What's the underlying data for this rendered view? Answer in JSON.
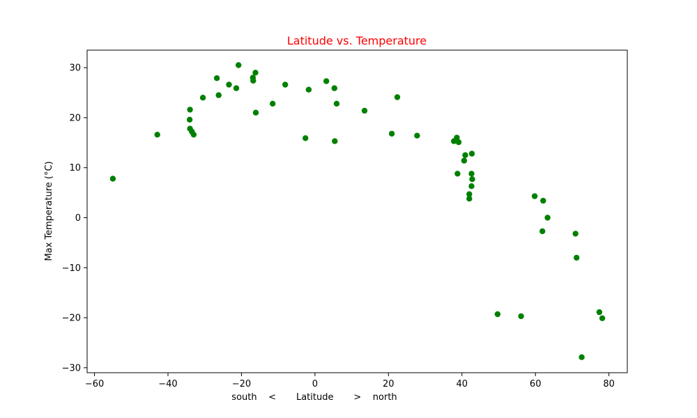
{
  "chart_data": {
    "type": "scatter",
    "title": "Latitude vs. Temperature",
    "title_color": "#ff0000",
    "xlabel": "south    <       Latitude       >    north",
    "ylabel": "Max Temperature (°C)",
    "xlim": [
      -62,
      85
    ],
    "ylim": [
      -31,
      33.5
    ],
    "xticks": [
      -60,
      -40,
      -20,
      0,
      20,
      40,
      60,
      80
    ],
    "yticks": [
      -30,
      -20,
      -10,
      0,
      10,
      20,
      30
    ],
    "grid": false,
    "marker_color": "#008000",
    "points": [
      {
        "x": -55.0,
        "y": 7.8
      },
      {
        "x": -42.9,
        "y": 16.6
      },
      {
        "x": -34.0,
        "y": 21.6
      },
      {
        "x": -34.1,
        "y": 19.6
      },
      {
        "x": -34.0,
        "y": 17.8
      },
      {
        "x": -33.5,
        "y": 17.2
      },
      {
        "x": -33.0,
        "y": 16.6
      },
      {
        "x": -30.5,
        "y": 24.0
      },
      {
        "x": -26.7,
        "y": 27.9
      },
      {
        "x": -26.2,
        "y": 24.5
      },
      {
        "x": -23.4,
        "y": 26.6
      },
      {
        "x": -21.4,
        "y": 25.9
      },
      {
        "x": -20.8,
        "y": 30.5
      },
      {
        "x": -16.9,
        "y": 28.0
      },
      {
        "x": -16.8,
        "y": 27.4
      },
      {
        "x": -16.2,
        "y": 29.0
      },
      {
        "x": -16.1,
        "y": 21.0
      },
      {
        "x": -11.5,
        "y": 22.8
      },
      {
        "x": -8.1,
        "y": 26.6
      },
      {
        "x": -2.6,
        "y": 15.9
      },
      {
        "x": -1.7,
        "y": 25.6
      },
      {
        "x": 3.1,
        "y": 27.3
      },
      {
        "x": 5.3,
        "y": 25.9
      },
      {
        "x": 5.4,
        "y": 15.3
      },
      {
        "x": 5.9,
        "y": 22.8
      },
      {
        "x": 13.5,
        "y": 21.4
      },
      {
        "x": 20.9,
        "y": 16.8
      },
      {
        "x": 22.4,
        "y": 24.1
      },
      {
        "x": 27.8,
        "y": 16.4
      },
      {
        "x": 37.8,
        "y": 15.3
      },
      {
        "x": 38.6,
        "y": 16.0
      },
      {
        "x": 38.8,
        "y": 8.8
      },
      {
        "x": 39.1,
        "y": 15.1
      },
      {
        "x": 40.6,
        "y": 11.4
      },
      {
        "x": 40.9,
        "y": 12.5
      },
      {
        "x": 42.0,
        "y": 4.7
      },
      {
        "x": 42.0,
        "y": 3.8
      },
      {
        "x": 42.6,
        "y": 8.8
      },
      {
        "x": 42.6,
        "y": 6.3
      },
      {
        "x": 42.7,
        "y": 12.8
      },
      {
        "x": 42.8,
        "y": 7.7
      },
      {
        "x": 49.7,
        "y": -19.3
      },
      {
        "x": 56.1,
        "y": -19.7
      },
      {
        "x": 59.8,
        "y": 4.3
      },
      {
        "x": 61.9,
        "y": -2.7
      },
      {
        "x": 62.1,
        "y": 3.4
      },
      {
        "x": 63.3,
        "y": 0.0
      },
      {
        "x": 70.9,
        "y": -3.2
      },
      {
        "x": 71.2,
        "y": -8.0
      },
      {
        "x": 72.6,
        "y": -27.9
      },
      {
        "x": 77.4,
        "y": -18.9
      },
      {
        "x": 78.2,
        "y": -20.1
      }
    ]
  }
}
